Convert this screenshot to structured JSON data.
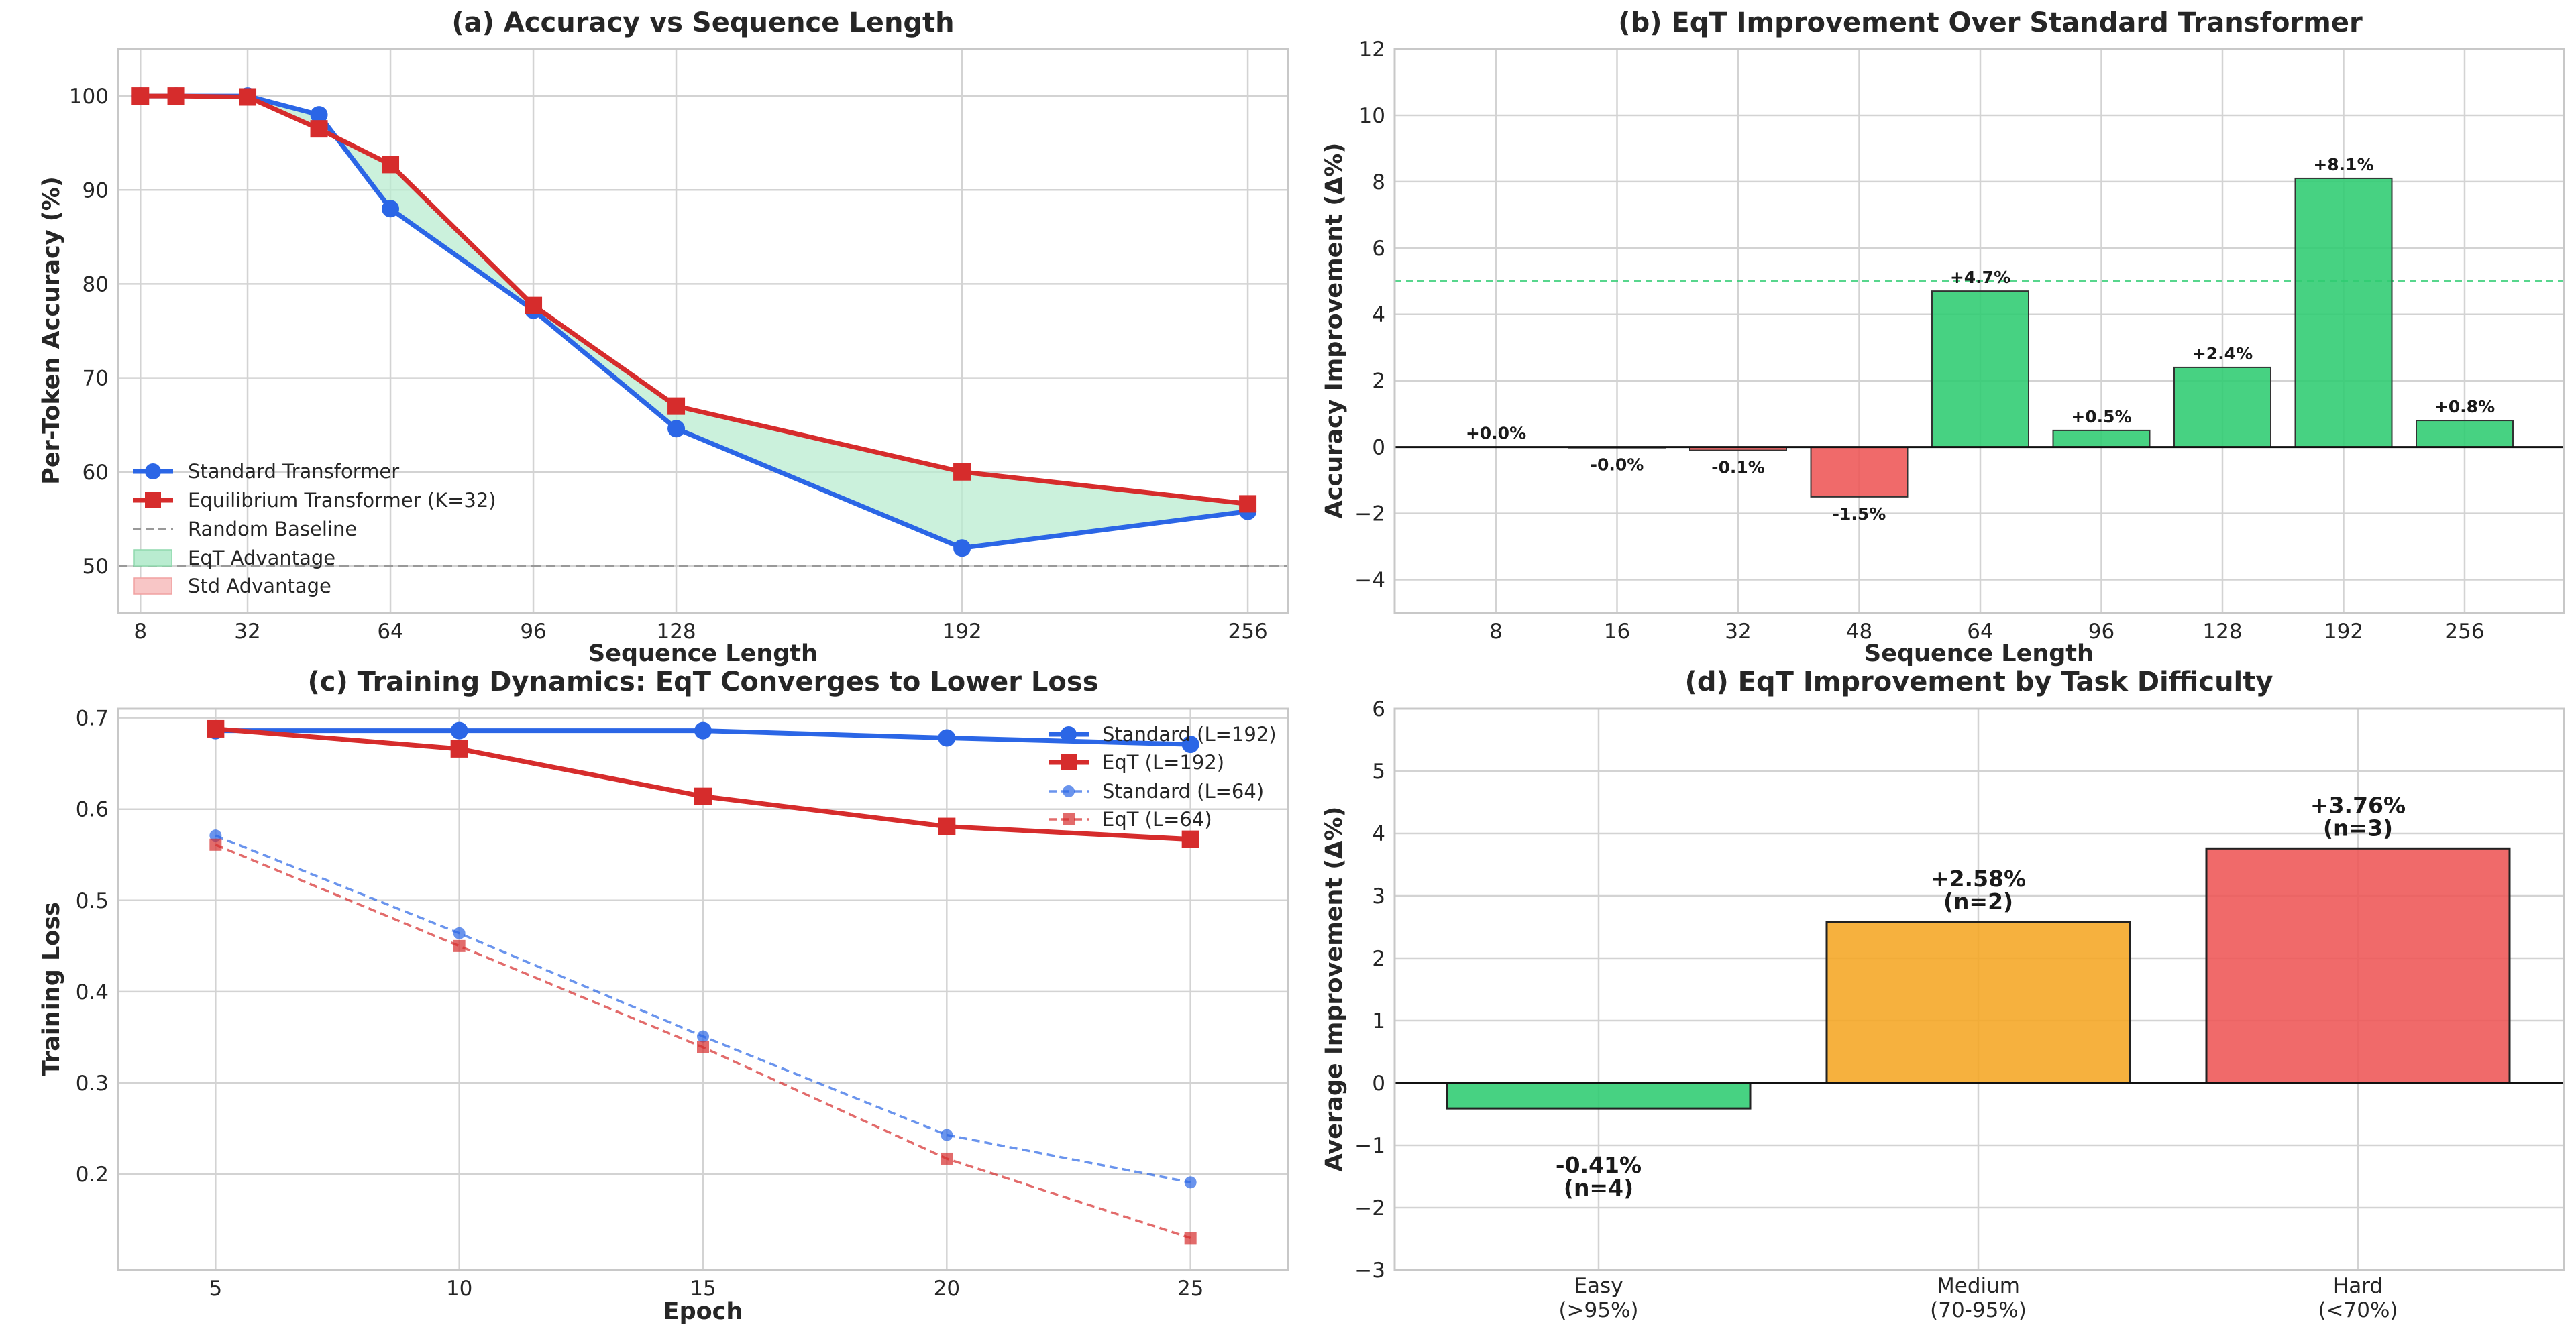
{
  "colors": {
    "standard": "#2b66e6",
    "eqt": "#d62c2c",
    "positive": "#2ecc71",
    "negative": "#ee5555",
    "medium": "#f5a623",
    "baseline": "#999999",
    "eqt_fill": "#b9ecd0",
    "std_fill": "#f8c6c6"
  },
  "chart_data": [
    {
      "id": "a",
      "type": "line",
      "title": "(a) Accuracy vs Sequence Length",
      "xlabel": "Sequence Length",
      "ylabel": "Per-Token Accuracy (%)",
      "xlim": [
        3,
        265
      ],
      "ylim": [
        45,
        105
      ],
      "xticks": [
        8,
        32,
        64,
        96,
        128,
        192,
        256
      ],
      "yticks": [
        50,
        60,
        70,
        80,
        90,
        100
      ],
      "x": [
        8,
        16,
        32,
        48,
        64,
        96,
        128,
        192,
        256
      ],
      "series": [
        {
          "name": "Standard Transformer",
          "values": [
            100,
            100,
            100,
            98.0,
            88.0,
            77.2,
            64.6,
            51.9,
            55.8
          ]
        },
        {
          "name": "Equilibrium Transformer (K=32)",
          "values": [
            100,
            100,
            99.9,
            96.5,
            92.7,
            77.7,
            67.0,
            60.0,
            56.6
          ]
        }
      ],
      "baseline": {
        "name": "Random Baseline",
        "value": 50
      },
      "fills": [
        {
          "name": "EqT Advantage"
        },
        {
          "name": "Std Advantage"
        }
      ],
      "legend": "lower-left"
    },
    {
      "id": "b",
      "type": "bar",
      "title": "(b) EqT Improvement Over Standard Transformer",
      "xlabel": "Sequence Length",
      "ylabel": "Accuracy Improvement (Δ%)",
      "ylim": [
        -5,
        12
      ],
      "yticks": [
        -4,
        -2,
        0,
        2,
        4,
        6,
        8,
        10,
        12
      ],
      "categories": [
        "8",
        "16",
        "32",
        "48",
        "64",
        "96",
        "128",
        "192",
        "256"
      ],
      "values": [
        0.0,
        -0.02,
        -0.1,
        -1.5,
        4.7,
        0.5,
        2.4,
        8.1,
        0.8
      ],
      "labels": [
        "+0.0%",
        "-0.0%",
        "-0.1%",
        "-1.5%",
        "+4.7%",
        "+0.5%",
        "+2.4%",
        "+8.1%",
        "+0.8%"
      ],
      "reference_line": 5
    },
    {
      "id": "c",
      "type": "line",
      "title": "(c) Training Dynamics: EqT Converges to Lower Loss",
      "xlabel": "Epoch",
      "ylabel": "Training Loss",
      "xlim": [
        3,
        27
      ],
      "ylim": [
        0.095,
        0.71
      ],
      "xticks": [
        5,
        10,
        15,
        20,
        25
      ],
      "yticks": [
        0.2,
        0.3,
        0.4,
        0.5,
        0.6,
        0.7
      ],
      "ytick_labels": [
        "0.2",
        "0.3",
        "0.4",
        "0.5",
        "0.6",
        "0.7"
      ],
      "x": [
        5,
        10,
        15,
        20,
        25
      ],
      "series": [
        {
          "name": "Standard (L=192)",
          "values": [
            0.686,
            0.686,
            0.686,
            0.678,
            0.671
          ]
        },
        {
          "name": "EqT (L=192)",
          "values": [
            0.688,
            0.666,
            0.614,
            0.581,
            0.567
          ]
        },
        {
          "name": "Standard (L=64)",
          "values": [
            0.571,
            0.464,
            0.351,
            0.243,
            0.191
          ]
        },
        {
          "name": "EqT (L=64)",
          "values": [
            0.561,
            0.45,
            0.339,
            0.217,
            0.13
          ]
        }
      ],
      "legend": "top-right"
    },
    {
      "id": "d",
      "type": "bar",
      "title": "(d) EqT Improvement by Task Difficulty",
      "xlabel": "",
      "ylabel": "Average Improvement (Δ%)",
      "ylim": [
        -3,
        6
      ],
      "yticks": [
        -3,
        -2,
        -1,
        0,
        1,
        2,
        3,
        4,
        5,
        6
      ],
      "categories": [
        "Easy",
        "Medium",
        "Hard"
      ],
      "category_sublabels": [
        "(>95%)",
        "(70-95%)",
        "(<70%)"
      ],
      "values": [
        -0.41,
        2.58,
        3.76
      ],
      "labels": [
        "-0.41%",
        "+2.58%",
        "+3.76%"
      ],
      "counts": [
        "(n=4)",
        "(n=2)",
        "(n=3)"
      ]
    }
  ]
}
